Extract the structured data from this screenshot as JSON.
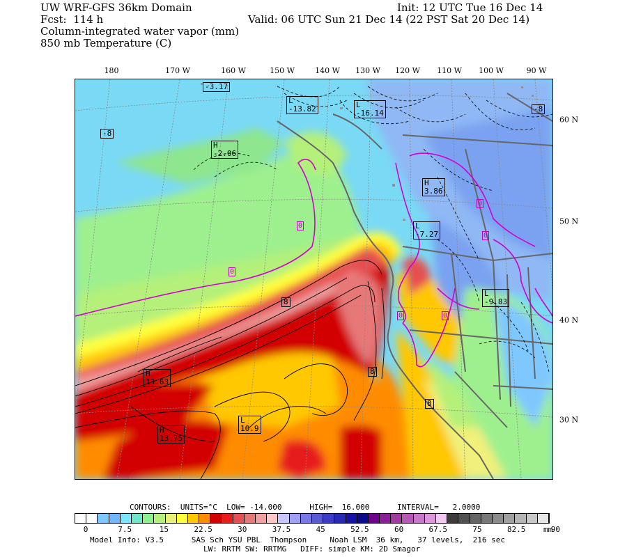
{
  "header": {
    "line1_left": "UW WRF-GFS 36km Domain",
    "line1_right": "Init: 12 UTC Tue 16 Dec 14",
    "line2_left": "Fcst:  114 h",
    "line2_right": "Valid: 06 UTC Sun 21 Dec 14 (22 PST Sat 20 Dec 14)",
    "line3": "Column-integrated water vapor (mm)",
    "line4": "850 mb Temperature (C)"
  },
  "lon_labels": [
    "180",
    "170 W",
    "160 W",
    "150 W",
    "140 W",
    "130 W",
    "120 W",
    "110 W",
    "100 W",
    "90 W"
  ],
  "lat_labels": [
    "60 N",
    "50 N",
    "40 N",
    "30 N"
  ],
  "pressure_labels": [
    {
      "type": "",
      "value": "-3.17"
    },
    {
      "type": "L",
      "value": "-13.82"
    },
    {
      "type": "L",
      "value": "-16.14"
    },
    {
      "type": "",
      "value": "-8"
    },
    {
      "type": "",
      "value": "-8"
    },
    {
      "type": "H",
      "value": "-2.06"
    },
    {
      "type": "H",
      "value": "3.86"
    },
    {
      "type": "L",
      "value": "-7.27"
    },
    {
      "type": "L",
      "value": "-9.83"
    },
    {
      "type": "H",
      "value": "13.63"
    },
    {
      "type": "H",
      "value": "13.75"
    },
    {
      "type": "L",
      "value": "10.9"
    },
    {
      "type": "",
      "value": "8"
    },
    {
      "type": "",
      "value": "8"
    },
    {
      "type": "",
      "value": "8"
    }
  ],
  "zero_labels": [
    "0",
    "0",
    "0",
    "0",
    "0",
    "0"
  ],
  "footer": {
    "contours": "CONTOURS:  UNITS=°C  LOW= -14.000      HIGH=  16.000      INTERVAL=   2.0000",
    "unit": "mm",
    "model_info": "Model Info: V3.5      SAS Sch YSU PBL  Thompson     Noah LSM  36 km,   37 levels,  216 sec",
    "model_info2": "LW: RRTM SW: RRTMG   DIFF: simple KM: 2D Smagor"
  },
  "colorbar": {
    "colors": [
      "#ffffff",
      "#ffffff",
      "#7fc7ff",
      "#6fb7ff",
      "#7ae6ff",
      "#6ee6c8",
      "#8ef08e",
      "#b4f07a",
      "#e8f07a",
      "#ffff3c",
      "#ffc800",
      "#ff8c00",
      "#d20000",
      "#e61e1e",
      "#e65050",
      "#e67878",
      "#f0a0a0",
      "#ffc8c8",
      "#c8c8ff",
      "#a0a0f5",
      "#7878e6",
      "#5a5ad2",
      "#3c3cc8",
      "#2828b4",
      "#1414a0",
      "#0a0a8c",
      "#6e008c",
      "#8c1e96",
      "#a03ca0",
      "#b45ab4",
      "#c878c8",
      "#dc96dc",
      "#f0c8f0",
      "#3c3c3c",
      "#505050",
      "#646464",
      "#787878",
      "#8c8c8c",
      "#a0a0a0",
      "#b4b4b4",
      "#c8c8c8",
      "#e6e6e6"
    ],
    "ticks": [
      "0",
      "7.5",
      "15",
      "22.5",
      "30",
      "37.5",
      "45",
      "52.5",
      "60",
      "67.5",
      "75",
      "82.5",
      "90"
    ]
  }
}
